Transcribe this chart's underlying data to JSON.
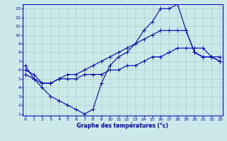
{
  "title": "Graphe des températures (°c)",
  "bg_color": "#cce8e8",
  "grid_color": "#99cccc",
  "line_color": "#0000bb",
  "xlim": [
    0,
    23
  ],
  "ylim": [
    1,
    13
  ],
  "xticks": [
    0,
    1,
    2,
    3,
    4,
    5,
    6,
    7,
    8,
    9,
    10,
    11,
    12,
    13,
    14,
    15,
    16,
    17,
    18,
    19,
    20,
    21,
    22,
    23
  ],
  "yticks": [
    1,
    2,
    3,
    4,
    5,
    6,
    7,
    8,
    9,
    10,
    11,
    12,
    13
  ],
  "line1_x": [
    0,
    1,
    2,
    3,
    4,
    5,
    6,
    7,
    8,
    9,
    10,
    11,
    12,
    13,
    14,
    15,
    16,
    17,
    18,
    19,
    20,
    21,
    22,
    23
  ],
  "line1_y": [
    6.5,
    5.0,
    4.0,
    3.0,
    2.5,
    2.0,
    1.5,
    1.0,
    1.5,
    4.5,
    6.5,
    7.5,
    8.0,
    9.0,
    10.5,
    11.5,
    13.0,
    13.0,
    13.5,
    10.5,
    8.0,
    7.5,
    7.5,
    7.0
  ],
  "line2_x": [
    0,
    1,
    2,
    3,
    4,
    5,
    6,
    7,
    8,
    9,
    10,
    11,
    12,
    13,
    14,
    15,
    16,
    17,
    18,
    19,
    20,
    21,
    22,
    23
  ],
  "line2_y": [
    6.0,
    5.5,
    4.5,
    4.5,
    5.0,
    5.5,
    5.5,
    6.0,
    6.5,
    7.0,
    7.5,
    8.0,
    8.5,
    9.0,
    9.5,
    10.0,
    10.5,
    10.5,
    10.5,
    10.5,
    8.0,
    7.5,
    7.5,
    7.5
  ],
  "line3_x": [
    0,
    1,
    2,
    3,
    4,
    5,
    6,
    7,
    8,
    9,
    10,
    11,
    12,
    13,
    14,
    15,
    16,
    17,
    18,
    19,
    20,
    21,
    22,
    23
  ],
  "line3_y": [
    5.5,
    5.0,
    4.5,
    4.5,
    5.0,
    5.0,
    5.0,
    5.5,
    5.5,
    5.5,
    6.0,
    6.0,
    6.5,
    6.5,
    7.0,
    7.5,
    7.5,
    8.0,
    8.5,
    8.5,
    8.5,
    8.5,
    7.5,
    7.0
  ],
  "xlabel_fontsize": 5.5,
  "tick_fontsize": 4.5,
  "marker_size": 2.0,
  "line_width": 0.8
}
